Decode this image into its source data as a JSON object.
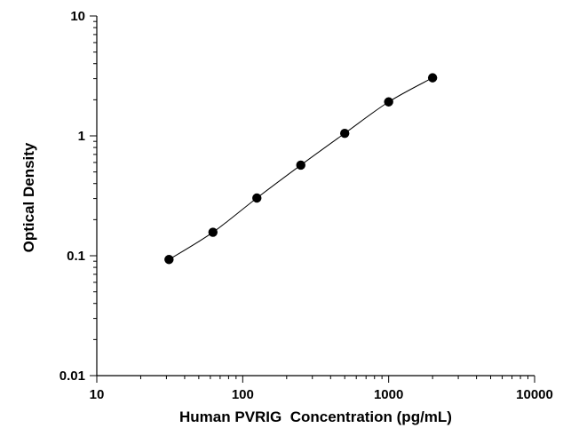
{
  "chart_data": {
    "type": "scatter",
    "title": "",
    "xlabel": "Human PVRIG  Concentration (pg/mL)",
    "ylabel": "Optical Density",
    "xscale": "log",
    "yscale": "log",
    "xlim": [
      10,
      10000
    ],
    "ylim": [
      0.01,
      10
    ],
    "x_tick_labels": [
      "10",
      "100",
      "1000",
      "10000"
    ],
    "y_tick_labels": [
      "0.01",
      "0.1",
      "1",
      "10"
    ],
    "grid": false,
    "legend": "none",
    "fit_curve": true,
    "series": [
      {
        "x": [
          31.25,
          62.5,
          125,
          250,
          500,
          1000,
          2000
        ],
        "y": [
          0.093,
          0.157,
          0.303,
          0.57,
          1.05,
          1.92,
          3.05
        ]
      }
    ],
    "colors": {
      "points": "#000000",
      "line": "#000000",
      "axes": "#000000"
    }
  }
}
